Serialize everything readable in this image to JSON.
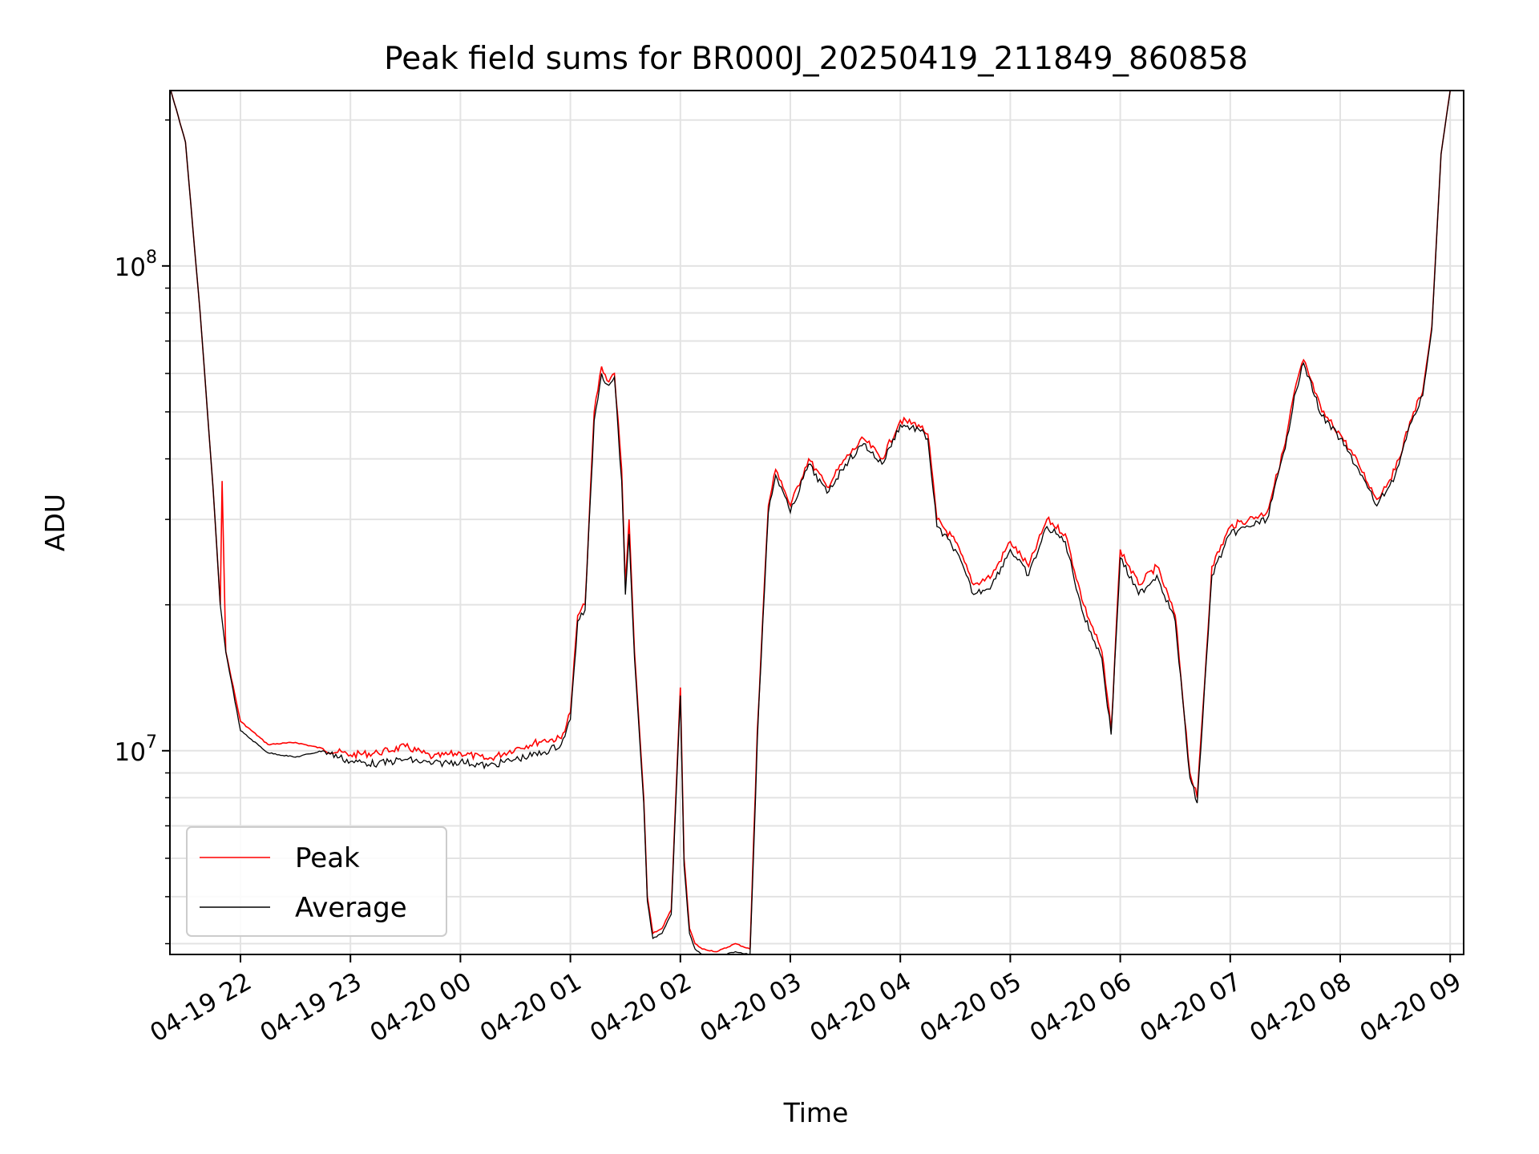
{
  "chart_data": {
    "type": "line",
    "title": "Peak field sums for BR000J_20250419_211849_860858",
    "xlabel": "Time",
    "ylabel": "ADU",
    "yscale": "log",
    "ylim": [
      3800000,
      230000000
    ],
    "x_tick_labels": [
      "04-19 22",
      "04-19 23",
      "04-20 00",
      "04-20 01",
      "04-20 02",
      "04-20 03",
      "04-20 04",
      "04-20 05",
      "04-20 06",
      "04-20 07",
      "04-20 08",
      "04-20 09"
    ],
    "y_tick_labels": [
      {
        "base": "10",
        "exp": "7"
      },
      {
        "base": "10",
        "exp": "8"
      }
    ],
    "grid": true,
    "legend_position": "lower-left",
    "series": [
      {
        "name": "Peak",
        "color": "#ff0000",
        "x": [
          "2025-04-19 21:22",
          "2025-04-19 21:30",
          "2025-04-19 21:38",
          "2025-04-19 21:45",
          "2025-04-19 21:49",
          "2025-04-19 21:50",
          "2025-04-19 21:52",
          "2025-04-19 22:00",
          "2025-04-19 22:15",
          "2025-04-19 22:30",
          "2025-04-19 22:45",
          "2025-04-19 23:00",
          "2025-04-19 23:15",
          "2025-04-19 23:30",
          "2025-04-19 23:45",
          "2025-04-20 00:00",
          "2025-04-20 00:15",
          "2025-04-20 00:30",
          "2025-04-20 00:45",
          "2025-04-20 00:55",
          "2025-04-20 01:00",
          "2025-04-20 01:04",
          "2025-04-20 01:08",
          "2025-04-20 01:13",
          "2025-04-20 01:17",
          "2025-04-20 01:20",
          "2025-04-20 01:24",
          "2025-04-20 01:28",
          "2025-04-20 01:30",
          "2025-04-20 01:32",
          "2025-04-20 01:35",
          "2025-04-20 01:40",
          "2025-04-20 01:42",
          "2025-04-20 01:45",
          "2025-04-20 01:50",
          "2025-04-20 01:55",
          "2025-04-20 02:00",
          "2025-04-20 02:02",
          "2025-04-20 02:05",
          "2025-04-20 02:08",
          "2025-04-20 02:12",
          "2025-04-20 02:20",
          "2025-04-20 02:30",
          "2025-04-20 02:38",
          "2025-04-20 02:42",
          "2025-04-20 02:45",
          "2025-04-20 02:48",
          "2025-04-20 02:52",
          "2025-04-20 02:55",
          "2025-04-20 03:00",
          "2025-04-20 03:10",
          "2025-04-20 03:20",
          "2025-04-20 03:30",
          "2025-04-20 03:40",
          "2025-04-20 03:50",
          "2025-04-20 04:00",
          "2025-04-20 04:10",
          "2025-04-20 04:15",
          "2025-04-20 04:20",
          "2025-04-20 04:30",
          "2025-04-20 04:40",
          "2025-04-20 04:50",
          "2025-04-20 05:00",
          "2025-04-20 05:10",
          "2025-04-20 05:20",
          "2025-04-20 05:30",
          "2025-04-20 05:40",
          "2025-04-20 05:50",
          "2025-04-20 05:55",
          "2025-04-20 06:00",
          "2025-04-20 06:10",
          "2025-04-20 06:20",
          "2025-04-20 06:30",
          "2025-04-20 06:38",
          "2025-04-20 06:42",
          "2025-04-20 06:50",
          "2025-04-20 07:00",
          "2025-04-20 07:10",
          "2025-04-20 07:20",
          "2025-04-20 07:30",
          "2025-04-20 07:35",
          "2025-04-20 07:40",
          "2025-04-20 07:50",
          "2025-04-20 08:00",
          "2025-04-20 08:10",
          "2025-04-20 08:20",
          "2025-04-20 08:30",
          "2025-04-20 08:40",
          "2025-04-20 08:45",
          "2025-04-20 08:50",
          "2025-04-20 08:55",
          "2025-04-20 09:00"
        ],
        "y": [
          230000000,
          180000000,
          80000000,
          35000000,
          20000000,
          36000000,
          16000000,
          11500000,
          10300000,
          10400000,
          10100000,
          9800000,
          9900000,
          10200000,
          9700000,
          9900000,
          9600000,
          10100000,
          10500000,
          10600000,
          12000000,
          19000000,
          20000000,
          50000000,
          62000000,
          58000000,
          60000000,
          38000000,
          22000000,
          30000000,
          16000000,
          8000000,
          5000000,
          4200000,
          4300000,
          4700000,
          13500000,
          6000000,
          4300000,
          4000000,
          3900000,
          3850000,
          4000000,
          3900000,
          11000000,
          19000000,
          32000000,
          38000000,
          36000000,
          32000000,
          40000000,
          35000000,
          40000000,
          44000000,
          40000000,
          48000000,
          47000000,
          45000000,
          30000000,
          27000000,
          22000000,
          23000000,
          27000000,
          24000000,
          30000000,
          28000000,
          20000000,
          16000000,
          11000000,
          26000000,
          22000000,
          24000000,
          19000000,
          9000000,
          8000000,
          24000000,
          29000000,
          30000000,
          31000000,
          43000000,
          55000000,
          64000000,
          50000000,
          45000000,
          39000000,
          33000000,
          38000000,
          50000000,
          55000000,
          75000000,
          170000000,
          230000000
        ]
      },
      {
        "name": "Average",
        "color": "#000000",
        "x": [
          "2025-04-19 21:22",
          "2025-04-19 21:30",
          "2025-04-19 21:38",
          "2025-04-19 21:45",
          "2025-04-19 21:49",
          "2025-04-19 21:52",
          "2025-04-19 22:00",
          "2025-04-19 22:15",
          "2025-04-19 22:30",
          "2025-04-19 22:45",
          "2025-04-19 23:00",
          "2025-04-19 23:15",
          "2025-04-19 23:30",
          "2025-04-19 23:45",
          "2025-04-20 00:00",
          "2025-04-20 00:15",
          "2025-04-20 00:30",
          "2025-04-20 00:45",
          "2025-04-20 00:55",
          "2025-04-20 01:00",
          "2025-04-20 01:04",
          "2025-04-20 01:08",
          "2025-04-20 01:13",
          "2025-04-20 01:17",
          "2025-04-20 01:20",
          "2025-04-20 01:24",
          "2025-04-20 01:28",
          "2025-04-20 01:30",
          "2025-04-20 01:32",
          "2025-04-20 01:35",
          "2025-04-20 01:40",
          "2025-04-20 01:42",
          "2025-04-20 01:45",
          "2025-04-20 01:50",
          "2025-04-20 01:55",
          "2025-04-20 02:00",
          "2025-04-20 02:02",
          "2025-04-20 02:05",
          "2025-04-20 02:08",
          "2025-04-20 02:12",
          "2025-04-20 02:20",
          "2025-04-20 02:30",
          "2025-04-20 02:38",
          "2025-04-20 02:42",
          "2025-04-20 02:45",
          "2025-04-20 02:48",
          "2025-04-20 02:52",
          "2025-04-20 02:55",
          "2025-04-20 03:00",
          "2025-04-20 03:10",
          "2025-04-20 03:20",
          "2025-04-20 03:30",
          "2025-04-20 03:40",
          "2025-04-20 03:50",
          "2025-04-20 04:00",
          "2025-04-20 04:10",
          "2025-04-20 04:15",
          "2025-04-20 04:20",
          "2025-04-20 04:30",
          "2025-04-20 04:40",
          "2025-04-20 04:50",
          "2025-04-20 05:00",
          "2025-04-20 05:10",
          "2025-04-20 05:20",
          "2025-04-20 05:30",
          "2025-04-20 05:40",
          "2025-04-20 05:50",
          "2025-04-20 05:55",
          "2025-04-20 06:00",
          "2025-04-20 06:10",
          "2025-04-20 06:20",
          "2025-04-20 06:30",
          "2025-04-20 06:38",
          "2025-04-20 06:42",
          "2025-04-20 06:50",
          "2025-04-20 07:00",
          "2025-04-20 07:10",
          "2025-04-20 07:20",
          "2025-04-20 07:30",
          "2025-04-20 07:35",
          "2025-04-20 07:40",
          "2025-04-20 07:50",
          "2025-04-20 08:00",
          "2025-04-20 08:10",
          "2025-04-20 08:20",
          "2025-04-20 08:30",
          "2025-04-20 08:40",
          "2025-04-20 08:45",
          "2025-04-20 08:50",
          "2025-04-20 08:55",
          "2025-04-20 09:00"
        ],
        "y": [
          230000000,
          180000000,
          80000000,
          35000000,
          20000000,
          16000000,
          11000000,
          9900000,
          9700000,
          10000000,
          9500000,
          9400000,
          9600000,
          9400000,
          9500000,
          9300000,
          9600000,
          9900000,
          10300000,
          11600000,
          18500000,
          19500000,
          48000000,
          60000000,
          57000000,
          59000000,
          36000000,
          21000000,
          28000000,
          15500000,
          7800000,
          4900000,
          4100000,
          4200000,
          4600000,
          13000000,
          5800000,
          4200000,
          3900000,
          3800000,
          3750000,
          3850000,
          3800000,
          10500000,
          18500000,
          31000000,
          37000000,
          35000000,
          31000000,
          39000000,
          34000000,
          39000000,
          43000000,
          39000000,
          47000000,
          46000000,
          44000000,
          29000000,
          26000000,
          21000000,
          22000000,
          26000000,
          23000000,
          29000000,
          27000000,
          19000000,
          15500000,
          10800000,
          25000000,
          21000000,
          23000000,
          18500000,
          8800000,
          7800000,
          23000000,
          28000000,
          29000000,
          30000000,
          42000000,
          54000000,
          63000000,
          49000000,
          44000000,
          38000000,
          32000000,
          37000000,
          49000000,
          54000000,
          74000000,
          170000000,
          230000000
        ]
      }
    ]
  }
}
